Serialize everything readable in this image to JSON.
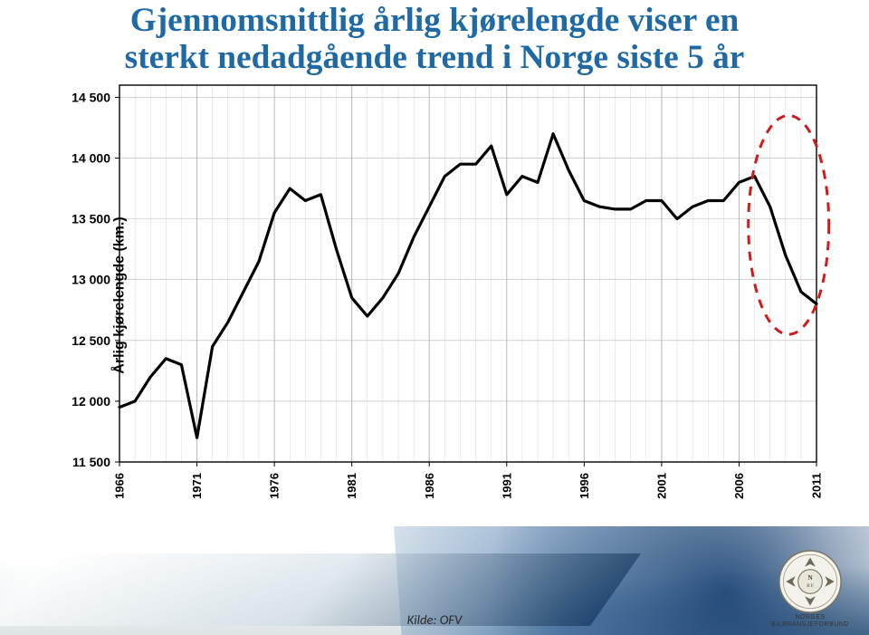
{
  "title_line1": "Gjennomsnittlig årlig kjørelengde viser en",
  "title_line2": "sterkt nedadgående trend i Norge siste 5 år",
  "title_color": "#1f6aa5",
  "title_fontsize_pt": 28,
  "source_label": "Kilde: OFV",
  "source_fontsize_pt": 11,
  "logo_top": "NORGES",
  "logo_bottom": "BILBRANSJEFORBUND",
  "chart": {
    "type": "line",
    "ylabel": "Årlig kjørelengde (km.)",
    "ylabel_fontsize": 16,
    "xlabel_fontsize": 13,
    "years": [
      1966,
      1967,
      1968,
      1969,
      1970,
      1971,
      1972,
      1973,
      1974,
      1975,
      1976,
      1977,
      1978,
      1979,
      1980,
      1981,
      1982,
      1983,
      1984,
      1985,
      1986,
      1987,
      1988,
      1989,
      1990,
      1991,
      1992,
      1993,
      1994,
      1995,
      1996,
      1997,
      1998,
      1999,
      2000,
      2001,
      2002,
      2003,
      2004,
      2005,
      2006,
      2007,
      2008,
      2009,
      2010,
      2011
    ],
    "values": [
      11950,
      12000,
      12200,
      12350,
      12300,
      11700,
      12450,
      12650,
      12900,
      13150,
      13550,
      13750,
      13650,
      13700,
      13250,
      12850,
      12700,
      12850,
      13050,
      13350,
      13600,
      13850,
      13950,
      13950,
      14100,
      13700,
      13850,
      13800,
      14200,
      13900,
      13650,
      13600,
      13580,
      13580,
      13650,
      13650,
      13500,
      13600,
      13650,
      13650,
      13800,
      13850,
      13600,
      13200,
      12900,
      12800
    ],
    "x_tick_labels": [
      "1966",
      "1971",
      "1976",
      "1981",
      "1986",
      "1991",
      "1996",
      "2001",
      "2006",
      "2011"
    ],
    "x_tick_years": [
      1966,
      1971,
      1976,
      1981,
      1986,
      1991,
      1996,
      2001,
      2006,
      2011
    ],
    "y_ticks": [
      11500,
      12000,
      12500,
      13000,
      13500,
      14000,
      14500
    ],
    "y_tick_labels": [
      "11 500",
      "12 000",
      "12 500",
      "13 000",
      "13 500",
      "14 000",
      "14 500"
    ],
    "ylim": [
      11500,
      14600
    ],
    "xlim": [
      1966,
      2011
    ],
    "line_color": "#000000",
    "line_width": 3.2,
    "grid_color": "#b8b8b8",
    "grid_width": 0.6,
    "axis_color": "#000000",
    "axis_width": 1.4,
    "background": "#ffffff",
    "tick_label_color": "#000000",
    "tick_label_fontsize": 14,
    "highlight_ellipse": {
      "stroke": "#d11a1a",
      "stroke_width": 3,
      "dash": "10 8",
      "cx_year": 2009.2,
      "cy_value": 13450,
      "rx_years": 2.6,
      "ry_value": 900
    }
  }
}
